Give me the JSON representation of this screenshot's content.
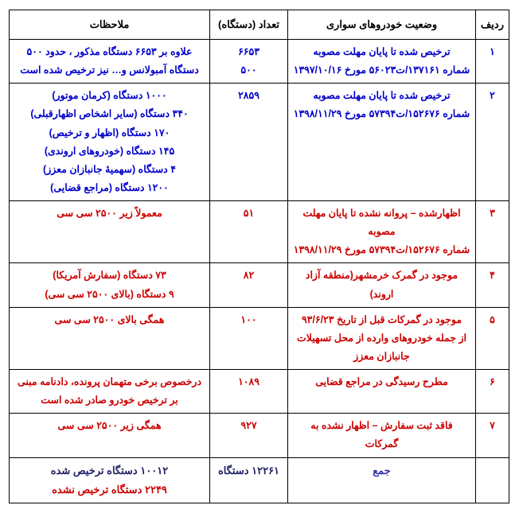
{
  "headers": {
    "radif": "ردیف",
    "status": "وضعیت خودروهای سواری",
    "count": "تعداد (دستگاه)",
    "notes": "ملاحظات"
  },
  "rows": [
    {
      "radif": "۱",
      "status": [
        "ترخیص شده تا پایان مهلت مصوبه",
        "شماره ۱۳۷۱۶۱/ت۵۶۰۲۳ مورخ ۱۳۹۷/۱۰/۱۶"
      ],
      "count": [
        "۶۶۵۳",
        "۵۰۰"
      ],
      "notes": [
        "علاوه بر ۶۶۵۳ دستگاه مذکور ، حدود ۵۰۰",
        "دستگاه آمبولانس و… نیز ترخیص شده است"
      ]
    },
    {
      "radif": "۲",
      "status": [
        "ترخیص شده  تا پایان مهلت مصوبه",
        "شماره ۱۵۲۶۷۶/ت۵۷۳۹۴ مورخ ۱۳۹۸/۱۱/۲۹"
      ],
      "count": [
        "۲۸۵۹"
      ],
      "notes": [
        "۱۰۰۰ دستگاه (کرمان موتور)",
        "۳۴۰ دستگاه (سایر اشخاص اظهارقبلی)",
        "۱۷۰ دستگاه (اظهار و ترخیص)",
        "۱۴۵ دستگاه (خودروهای اروندی)",
        "۴ دستگاه (سهمیۀ جانبازان معزز)",
        "۱۲۰۰ دستگاه (مراجع قضایی)"
      ]
    },
    {
      "radif": "۳",
      "status": [
        "اظهارشده – پروانه نشده تا پایان مهلت مصوبه",
        "شماره ۱۵۲۶۷۶/ت۵۷۳۹۴ مورخ ۱۳۹۸/۱۱/۲۹"
      ],
      "count": [
        "۵۱"
      ],
      "notes": [
        "معمولاً زیر ۲۵۰۰ سی سی"
      ]
    },
    {
      "radif": "۴",
      "status": [
        "موجود در گمرک خرمشهر(منطقه آزاد اروند)"
      ],
      "count": [
        "۸۲"
      ],
      "notes": [
        "۷۳ دستگاه (سفارش آمریکا)",
        "۹ دستگاه (بالای ۲۵۰۰ سی سی)"
      ]
    },
    {
      "radif": "۵",
      "status": [
        "موجود در گمرکات قبل از تاریخ ۹۳/۶/۲۳",
        "از جمله خودروهای وارده از محل تسهیلات جانبازان معزز"
      ],
      "count": [
        "۱۰۰"
      ],
      "notes": [
        "همگی بالای ۲۵۰۰ سی سی"
      ]
    },
    {
      "radif": "۶",
      "status": [
        "مطرح رسیدگی در مراجع قضایی"
      ],
      "count": [
        "۱۰۸۹"
      ],
      "notes": [
        "درخصوص برخی متهمان پرونده، دادنامه مبنی",
        "بر ترخیص خودرو صادر شده است"
      ]
    },
    {
      "radif": "۷",
      "status": [
        "فاقد ثبت سفارش – اظهار نشده به گمرکات"
      ],
      "count": [
        "۹۲۷"
      ],
      "notes": [
        "همگی زیر ۲۵۰۰ سی سی"
      ]
    }
  ],
  "sum": {
    "status": "جمع",
    "count": "۱۲۲۶۱ دستگاه",
    "notes": [
      "۱۰۰۱۲ دستگاه ترخیص شده",
      "۲۲۴۹ دستگاه ترخیص نشده"
    ]
  },
  "colors": {
    "blue": "#0000cc",
    "red": "#cc0000",
    "sum_status": "#3333aa",
    "sum_notes1": "#222266"
  }
}
